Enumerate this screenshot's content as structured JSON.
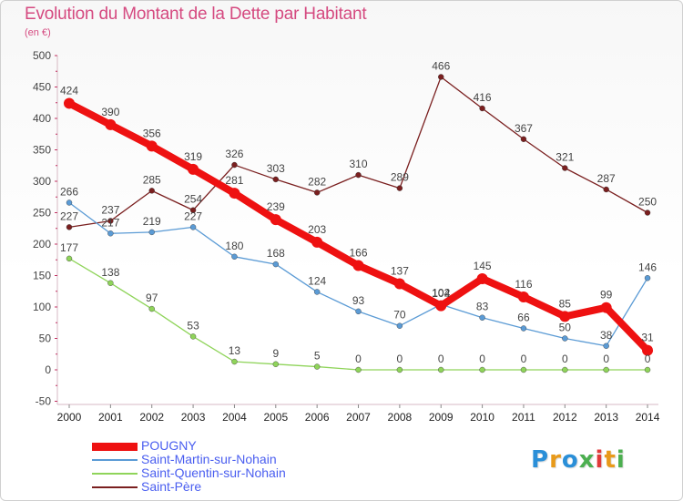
{
  "chart_data": {
    "type": "line",
    "title": "Evolution du Montant de la Dette par Habitant",
    "subtitle": "(en €)",
    "x": [
      "2000",
      "2001",
      "2002",
      "2003",
      "2004",
      "2005",
      "2006",
      "2007",
      "2008",
      "2009",
      "2010",
      "2011",
      "2012",
      "2013",
      "2014"
    ],
    "y_ticks": [
      "500",
      "450",
      "400",
      "350",
      "300",
      "250",
      "200",
      "150",
      "100",
      "50",
      "0",
      "-50"
    ],
    "ylim": [
      -50,
      500
    ],
    "grid": false,
    "legend_position": "bottom-left",
    "series": [
      {
        "name": "Saint-Père",
        "color": "#7a1f1f",
        "values": [
          227,
          237,
          285,
          254,
          326,
          303,
          282,
          310,
          289,
          466,
          416,
          367,
          321,
          287,
          250
        ],
        "labels": [
          "227",
          "237",
          "285",
          "254",
          "326",
          "303",
          "282",
          "310",
          "289",
          "466",
          "416",
          "367",
          "321",
          "287",
          "250"
        ]
      },
      {
        "name": "Saint-Quentin-sur-Nohain",
        "color": "#8fd45a",
        "values": [
          177,
          138,
          97,
          53,
          13,
          9,
          5,
          0,
          0,
          0,
          0,
          0,
          0,
          0,
          0
        ],
        "labels": [
          "177",
          "138",
          "97",
          "53",
          "13",
          "9",
          "5",
          "0",
          "0",
          "0",
          "0",
          "0",
          "0",
          "0",
          "0"
        ]
      },
      {
        "name": "Saint-Martin-sur-Nohain",
        "color": "#5b9bd5",
        "values": [
          266,
          217,
          219,
          227,
          180,
          168,
          124,
          93,
          70,
          104,
          83,
          66,
          50,
          38,
          146
        ],
        "labels": [
          "266",
          "217",
          "219",
          "227",
          "180",
          "168",
          "124",
          "93",
          "70",
          "104",
          "83",
          "66",
          "50",
          "38",
          "146"
        ]
      },
      {
        "name": "POUGNY",
        "color": "#ee1111",
        "values": [
          424,
          390,
          356,
          319,
          281,
          239,
          203,
          166,
          137,
          102,
          145,
          116,
          85,
          99,
          31
        ],
        "labels": [
          "424",
          "390",
          "356",
          "319",
          "281",
          "239",
          "203",
          "166",
          "137",
          "102",
          "145",
          "116",
          "85",
          "99",
          "31"
        ]
      }
    ]
  },
  "legend": [
    {
      "label": "POUGNY",
      "color": "#ee1111"
    },
    {
      "label": "Saint-Martin-sur-Nohain",
      "color": "#5b9bd5"
    },
    {
      "label": "Saint-Quentin-sur-Nohain",
      "color": "#8fd45a"
    },
    {
      "label": "Saint-Père",
      "color": "#7a1f1f"
    }
  ],
  "logo": {
    "text": "Proxiti",
    "colors": [
      "#2a8fd8",
      "#e89a1a",
      "#2a8fd8",
      "#4caf50",
      "#e03a3a",
      "#e89a1a",
      "#4caf50"
    ]
  }
}
